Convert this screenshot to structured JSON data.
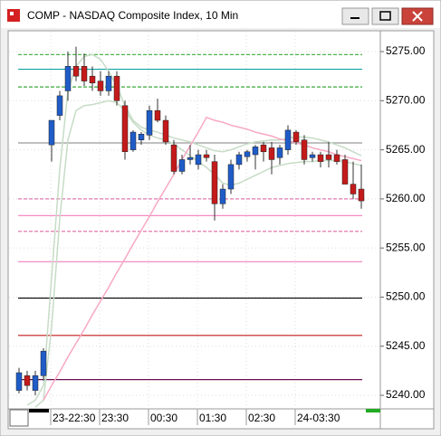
{
  "chart_data": {
    "type": "candlestick",
    "title": "COMP - NASDAQ Composite Index, 10 Min",
    "categories": [
      null,
      null,
      null,
      null,
      "23-22:30",
      null,
      null,
      null,
      null,
      null,
      "23:30",
      null,
      null,
      null,
      null,
      null,
      "00:30",
      null,
      null,
      null,
      null,
      null,
      "01:30",
      null,
      null,
      null,
      null,
      null,
      "02:30",
      null,
      null,
      null,
      null,
      null,
      "24-03:30",
      null,
      null,
      null,
      null,
      null,
      null,
      null,
      null
    ],
    "open": [
      5240.5,
      5242.0,
      5240.5,
      5242.0,
      5265.5,
      5268.5,
      5271.0,
      5273.5,
      5273.5,
      5272.5,
      5272.0,
      5271.0,
      5272.5,
      5269.5,
      5265.0,
      5266.0,
      5266.5,
      5269.0,
      5268.0,
      5265.5,
      5262.8,
      5264.0,
      5263.5,
      5264.5,
      5263.8,
      5259.5,
      5261.0,
      5263.5,
      5264.3,
      5264.5,
      5265.5,
      5265.2,
      5264.2,
      5265.0,
      5266.8,
      5266.0,
      5264.2,
      5264.5,
      5264.5,
      5264.5,
      5264.0,
      5261.5,
      5261.0
    ],
    "high": [
      5242.8,
      5242.5,
      5242.5,
      5244.8,
      5268.0,
      5271.0,
      5275.0,
      5275.5,
      5274.8,
      5273.5,
      5273.0,
      5273.0,
      5273.0,
      5270.0,
      5267.0,
      5266.8,
      5269.5,
      5270.2,
      5268.5,
      5266.0,
      5264.5,
      5265.5,
      5265.0,
      5265.0,
      5264.5,
      5261.5,
      5264.0,
      5264.8,
      5265.0,
      5265.5,
      5265.8,
      5265.8,
      5265.5,
      5267.5,
      5267.0,
      5266.5,
      5264.8,
      5264.8,
      5265.8,
      5265.0,
      5264.5,
      5263.8,
      5263.5
    ],
    "low": [
      5240.2,
      5240.5,
      5240.0,
      5241.5,
      5263.8,
      5268.0,
      5270.0,
      5272.0,
      5271.5,
      5271.0,
      5270.5,
      5270.5,
      5269.5,
      5264.0,
      5264.8,
      5265.5,
      5266.0,
      5267.8,
      5265.5,
      5262.5,
      5262.5,
      5263.5,
      5263.0,
      5263.8,
      5257.8,
      5259.0,
      5260.5,
      5263.0,
      5263.8,
      5263.0,
      5263.8,
      5262.5,
      5263.5,
      5264.5,
      5265.5,
      5263.5,
      5263.8,
      5263.2,
      5263.2,
      5263.5,
      5261.5,
      5260.0,
      5259.0
    ],
    "close": [
      5242.3,
      5241.0,
      5242.0,
      5244.5,
      5268.0,
      5270.5,
      5273.5,
      5272.5,
      5272.0,
      5271.8,
      5271.0,
      5272.5,
      5270.0,
      5264.8,
      5266.8,
      5266.6,
      5269.0,
      5268.0,
      5265.8,
      5262.8,
      5264.0,
      5264.2,
      5264.5,
      5264.2,
      5259.5,
      5261.0,
      5263.5,
      5264.5,
      5264.8,
      5265.3,
      5264.8,
      5264.0,
      5265.2,
      5267.0,
      5265.8,
      5264.0,
      5264.5,
      5263.8,
      5264.0,
      5263.8,
      5261.5,
      5260.5,
      5259.8
    ],
    "up_color": "#1f5cc8",
    "down_color": "#c41a1a",
    "ylim": [
      5238.62,
      5277.03
    ],
    "yticks": [
      {
        "value": 5240,
        "label": "5240.00"
      },
      {
        "value": 5245,
        "label": "5245.00"
      },
      {
        "value": 5250,
        "label": "5250.00"
      },
      {
        "value": 5255,
        "label": "5255.00"
      },
      {
        "value": 5260,
        "label": "5260.00"
      },
      {
        "value": 5265,
        "label": "5265.00"
      },
      {
        "value": 5270,
        "label": "5270.00"
      },
      {
        "value": 5275,
        "label": "5275.00"
      }
    ],
    "grid": true,
    "overlays": [
      {
        "color": "#c6dcc6",
        "values": [
          null,
          5239,
          5239.5,
          5241,
          5252,
          5263,
          5271,
          5273.5,
          5274.5,
          5274.7,
          5274.2,
          5273,
          5271.5,
          5269.5,
          5268,
          5267.3,
          5267,
          5266.8,
          5266.5,
          5266.2,
          5266,
          5265.8,
          5265.5,
          5265.2,
          5264.9,
          5264.8,
          5265,
          5265.3,
          5265.6,
          5265.8,
          5265.9,
          5266,
          5266,
          5266.2,
          5266.3,
          5266.3,
          5266.2,
          5266,
          5265.8,
          5265.5,
          5265.2,
          5264.8,
          5264.4
        ]
      },
      {
        "color": "#c6dcc6",
        "values": [
          null,
          null,
          5238.8,
          5239.5,
          5247,
          5258,
          5266,
          5269,
          5269.5,
          5269.6,
          5269.8,
          5270,
          5269.8,
          5269,
          5267.8,
          5267,
          5266.5,
          5266.2,
          5266,
          5265.6,
          5265,
          5264.4,
          5263.8,
          5263.2,
          5262.5,
          5261.6,
          5261.4,
          5261.6,
          5262,
          5262.4,
          5262.8,
          5263.2,
          5263.4,
          5263.6,
          5263.7,
          5263.8,
          5263.8,
          5263.9,
          5263.9,
          5263.9,
          5263.8,
          5263.6,
          5263.4
        ]
      },
      {
        "color": "#f7a8c4",
        "values": [
          null,
          null,
          null,
          5239.5,
          5241,
          5242.4,
          5243.9,
          5245.3,
          5246.7,
          5248.2,
          5249.6,
          5251.0,
          5252.5,
          5253.9,
          5255.4,
          5256.8,
          5258.2,
          5259.7,
          5261.1,
          5262.5,
          5264.0,
          5265.4,
          5266.8,
          5268.3,
          5268.0,
          5267.8,
          5267.5,
          5267.3,
          5267.1,
          5266.8,
          5266.6,
          5266.4,
          5266.1,
          5265.9,
          5265.7,
          5265.5,
          5265.2,
          5265.0,
          5264.8,
          5264.5,
          5264.3,
          5264.1,
          5263.9
        ]
      }
    ],
    "levels": [
      {
        "value": 5274.7,
        "color": "#3aaa3a",
        "dashed": true
      },
      {
        "value": 5273.2,
        "color": "#13a3a3",
        "dashed": false
      },
      {
        "value": 5271.4,
        "color": "#3aaa3a",
        "dashed": true
      },
      {
        "value": 5265.7,
        "color": "#999999",
        "dashed": false
      },
      {
        "value": 5260.0,
        "color": "#e27ab0",
        "dashed": true
      },
      {
        "value": 5258.3,
        "color": "#f48cc4",
        "dashed": false
      },
      {
        "value": 5256.7,
        "color": "#e27ab0",
        "dashed": true
      },
      {
        "value": 5253.6,
        "color": "#f48cc4",
        "dashed": false
      },
      {
        "value": 5249.9,
        "color": "#000000",
        "dashed": false
      },
      {
        "value": 5246.1,
        "color": "#c41a1a",
        "dashed": false
      },
      {
        "value": 5241.6,
        "color": "#6a1050",
        "dashed": false
      }
    ]
  }
}
